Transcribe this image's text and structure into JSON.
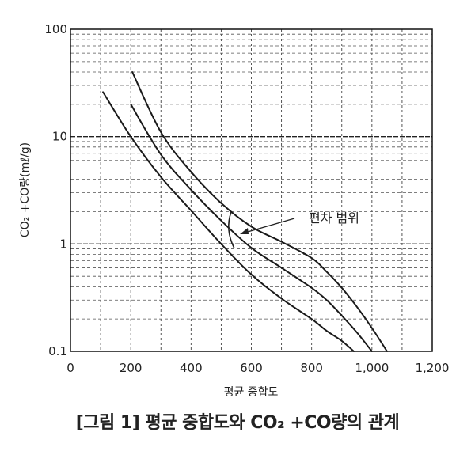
{
  "chart_data": {
    "type": "line",
    "title": "[그림 1] 평균 중합도와 CO₂ +CO량의 관계",
    "xlabel": "평균 중합도",
    "ylabel": "CO₂ +CO량(mℓ/g)",
    "x_ticks": [
      "0",
      "200",
      "400",
      "600",
      "800",
      "1,000",
      "1,200"
    ],
    "y_ticks": [
      "0.1",
      "1",
      "10",
      "100"
    ],
    "xlim": [
      0,
      1200
    ],
    "ylim": [
      0.1,
      100
    ],
    "yscale": "log",
    "grid": true,
    "annotation": "편차 범위",
    "series": [
      {
        "x": [
          108,
          200,
          300,
          400,
          500,
          600,
          700,
          800,
          850,
          900,
          940
        ],
        "y": [
          26,
          10,
          4.2,
          2.05,
          1.0,
          0.52,
          0.31,
          0.2,
          0.155,
          0.125,
          0.1
        ]
      },
      {
        "x": [
          200,
          300,
          400,
          500,
          600,
          700,
          800,
          850,
          900,
          950,
          1000
        ],
        "y": [
          20,
          6.8,
          3.2,
          1.65,
          0.92,
          0.6,
          0.39,
          0.3,
          0.215,
          0.15,
          0.1
        ]
      },
      {
        "x": [
          205,
          300,
          400,
          500,
          600,
          700,
          800,
          850,
          900,
          950,
          1000,
          1050
        ],
        "y": [
          40,
          11,
          4.7,
          2.4,
          1.45,
          1.05,
          0.74,
          0.55,
          0.39,
          0.26,
          0.165,
          0.1
        ]
      }
    ]
  }
}
